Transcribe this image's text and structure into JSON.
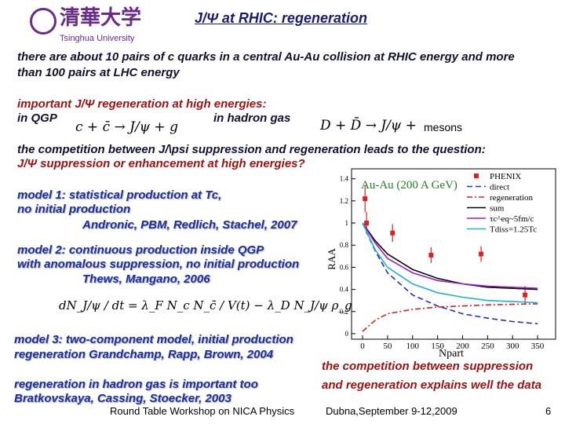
{
  "header": {
    "logo_cn": "清華大学",
    "logo_en": "Tsinghua University",
    "title": "J/Ψ at RHIC: regeneration"
  },
  "intro": [
    "there are about 10 pairs of c quarks in a central Au-Au collision at RHIC energy and more",
    "than 100 pairs at LHC energy"
  ],
  "important": {
    "heading": "important J/Ψ regeneration at high energies:",
    "qgp_label": "in QGP",
    "qgp_equation": "c + c̄ → J/ψ + g",
    "hadron_label": "in hadron gas",
    "hadron_equation": "D + D̄ → J/ψ +",
    "hadron_product": "mesons"
  },
  "question": [
    "the competition between J/\\psi suppression and regeneration leads to the question:",
    "J/Ψ suppression or enhancement at high energies?"
  ],
  "model1": [
    "model 1: statistical production at Tc,",
    "no initial production",
    "Andronic, PBM, Redlich, Stachel, 2007"
  ],
  "model2": [
    "model 2: continuous production inside QGP",
    "with anomalous suppression, no initial production",
    "Thews, Mangano, 2006"
  ],
  "rate_equation": "dN_J/ψ / dt = λ_F N_c N_c̄ / V(t) − λ_D N_J/ψ ρ_g",
  "model3": [
    "model 3: two-component model, initial production",
    "regeneration   Grandchamp, Rapp, Brown, 2004"
  ],
  "hadron_gas": [
    "regeneration in hadron gas is important too",
    "Bratkovskaya, Cassing, Stoecker, 2003"
  ],
  "conclusion": [
    "the competition between suppression",
    "and regeneration explains well the data"
  ],
  "footer": {
    "event": "Round Table Workshop on NICA Physics",
    "place_date": "Dubna,September 9-12,2009",
    "page": "6"
  },
  "chart_data": {
    "type": "line",
    "title": "Au-Au (200 A GeV)",
    "xlabel": "Npart",
    "ylabel": "RAA",
    "xlim": [
      -22,
      386
    ],
    "ylim": [
      -0.05,
      1.49
    ],
    "xticks": [
      0,
      50,
      100,
      150,
      200,
      250,
      300,
      350
    ],
    "yticks": [
      0,
      0.2,
      0.4,
      0.6,
      0.8,
      1,
      1.2,
      1.4
    ],
    "series": [
      {
        "name": "PHENIX",
        "color": "#e02020",
        "style": "marker",
        "x": [
          5,
          8,
          60,
          137,
          237,
          325
        ],
        "values": [
          1.22,
          1.0,
          0.91,
          0.71,
          0.72,
          0.35
        ],
        "errors": [
          0.12,
          0.1,
          0.08,
          0.07,
          0.07,
          0.08
        ]
      },
      {
        "name": "direct",
        "color": "#2030c0",
        "style": "dashed",
        "x": [
          0,
          25,
          50,
          100,
          150,
          200,
          250,
          300,
          350
        ],
        "values": [
          1.0,
          0.75,
          0.55,
          0.35,
          0.25,
          0.18,
          0.14,
          0.11,
          0.09
        ]
      },
      {
        "name": "regeneration",
        "color": "#d02020",
        "style": "dashdot",
        "x": [
          0,
          25,
          50,
          100,
          150,
          200,
          250,
          300,
          350
        ],
        "values": [
          0.02,
          0.12,
          0.18,
          0.22,
          0.24,
          0.25,
          0.26,
          0.265,
          0.27
        ]
      },
      {
        "name": "sum",
        "color": "#000000",
        "style": "solid",
        "x": [
          0,
          25,
          50,
          100,
          150,
          200,
          250,
          300,
          350
        ],
        "values": [
          1.0,
          0.84,
          0.72,
          0.58,
          0.5,
          0.45,
          0.42,
          0.41,
          0.4
        ]
      },
      {
        "name": "τc^eq~5fm/c",
        "color": "#a020c0",
        "style": "solid",
        "x": [
          0,
          25,
          50,
          100,
          150,
          200,
          250,
          300,
          350
        ],
        "values": [
          1.0,
          0.82,
          0.68,
          0.55,
          0.48,
          0.45,
          0.43,
          0.42,
          0.41
        ]
      },
      {
        "name": "Tdiss=1.25Tc",
        "color": "#20b0d0",
        "style": "solid",
        "x": [
          0,
          25,
          50,
          100,
          150,
          200,
          250,
          300,
          350
        ],
        "values": [
          1.0,
          0.76,
          0.6,
          0.45,
          0.37,
          0.33,
          0.3,
          0.29,
          0.28
        ]
      }
    ]
  }
}
